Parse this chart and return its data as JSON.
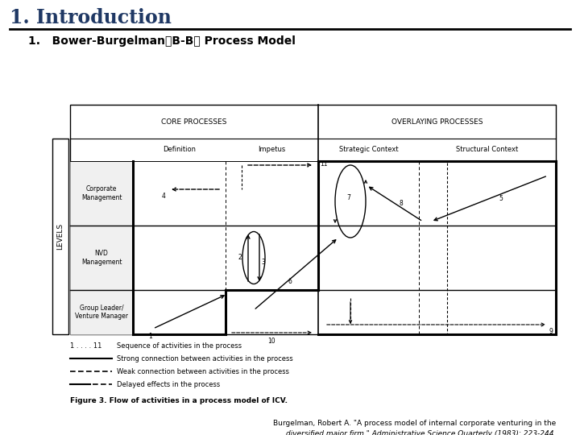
{
  "title": "1. Introduction",
  "subtitle": "1.   Bower-Burgelman（B-B） Process Model",
  "title_color": "#1F3864",
  "bg_color": "#ffffff",
  "citation_line1": "Burgelman, Robert A. \"A process model of internal corporate venturing in the",
  "citation_line2": "diversified major firm.\" Administrative Science Quarterly (1983): 223-244.",
  "figure_caption": "Figure 3. Flow of activities in a process model of ICV.",
  "col_labels": [
    "Definition",
    "Impetus",
    "Strategic Context",
    "Structural Context"
  ],
  "row_labels": [
    "Corporate\nManagement",
    "NVD\nManagement",
    "Group Leader/\nVenture Manager"
  ],
  "section_labels": [
    "CORE PROCESSES",
    "OVERLAYING PROCESSES"
  ],
  "levels_label": "LEVELS",
  "legend_seq": "1 . . . . 11    Sequence of activities in the process",
  "legend_strong": "Strong connection between activities in the process",
  "legend_weak": "Weak connection between activities in the process",
  "legend_delayed": "Delayed effects in the process"
}
